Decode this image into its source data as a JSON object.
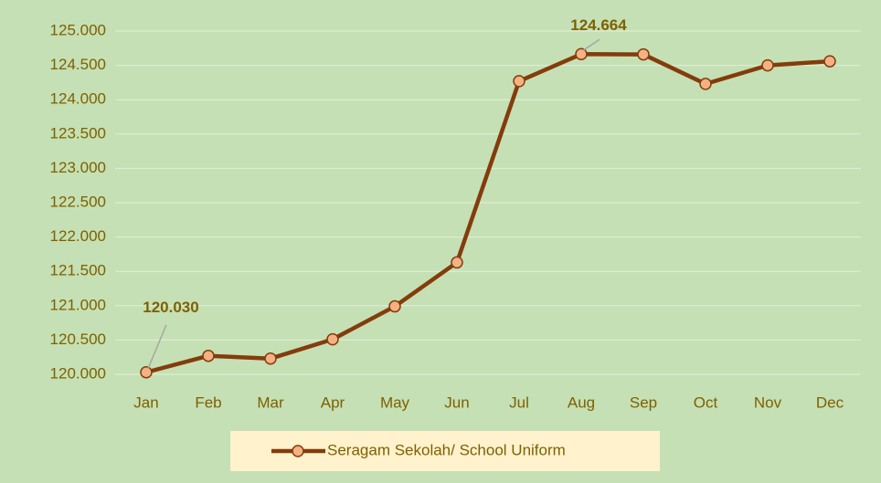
{
  "chart_data": {
    "type": "line",
    "categories": [
      "Jan",
      "Feb",
      "Mar",
      "Apr",
      "May",
      "Jun",
      "Jul",
      "Aug",
      "Sep",
      "Oct",
      "Nov",
      "Dec"
    ],
    "series": [
      {
        "name": "Seragam Sekolah/ School Uniform",
        "color": "#843c0c",
        "marker_color": "#f4b183",
        "values": [
          120.03,
          120.27,
          120.23,
          120.51,
          120.99,
          121.63,
          124.27,
          124.664,
          124.66,
          124.23,
          124.5,
          124.56
        ],
        "value_labels": [
          "120.030",
          null,
          null,
          null,
          null,
          null,
          null,
          "124.664",
          null,
          null,
          null,
          null
        ]
      }
    ],
    "ylim": [
      120,
      125
    ],
    "yticks": [
      {
        "value": 120,
        "label": "120.000"
      },
      {
        "value": 120.5,
        "label": "120.500"
      },
      {
        "value": 121,
        "label": "121.000"
      },
      {
        "value": 121.5,
        "label": "121.500"
      },
      {
        "value": 122,
        "label": "122.000"
      },
      {
        "value": 122.5,
        "label": "122.500"
      },
      {
        "value": 123,
        "label": "123.000"
      },
      {
        "value": 123.5,
        "label": "123.500"
      },
      {
        "value": 124,
        "label": "124.000"
      },
      {
        "value": 124.5,
        "label": "124.500"
      },
      {
        "value": 125,
        "label": "125.000"
      }
    ],
    "grid": true,
    "legend": "bottom"
  }
}
